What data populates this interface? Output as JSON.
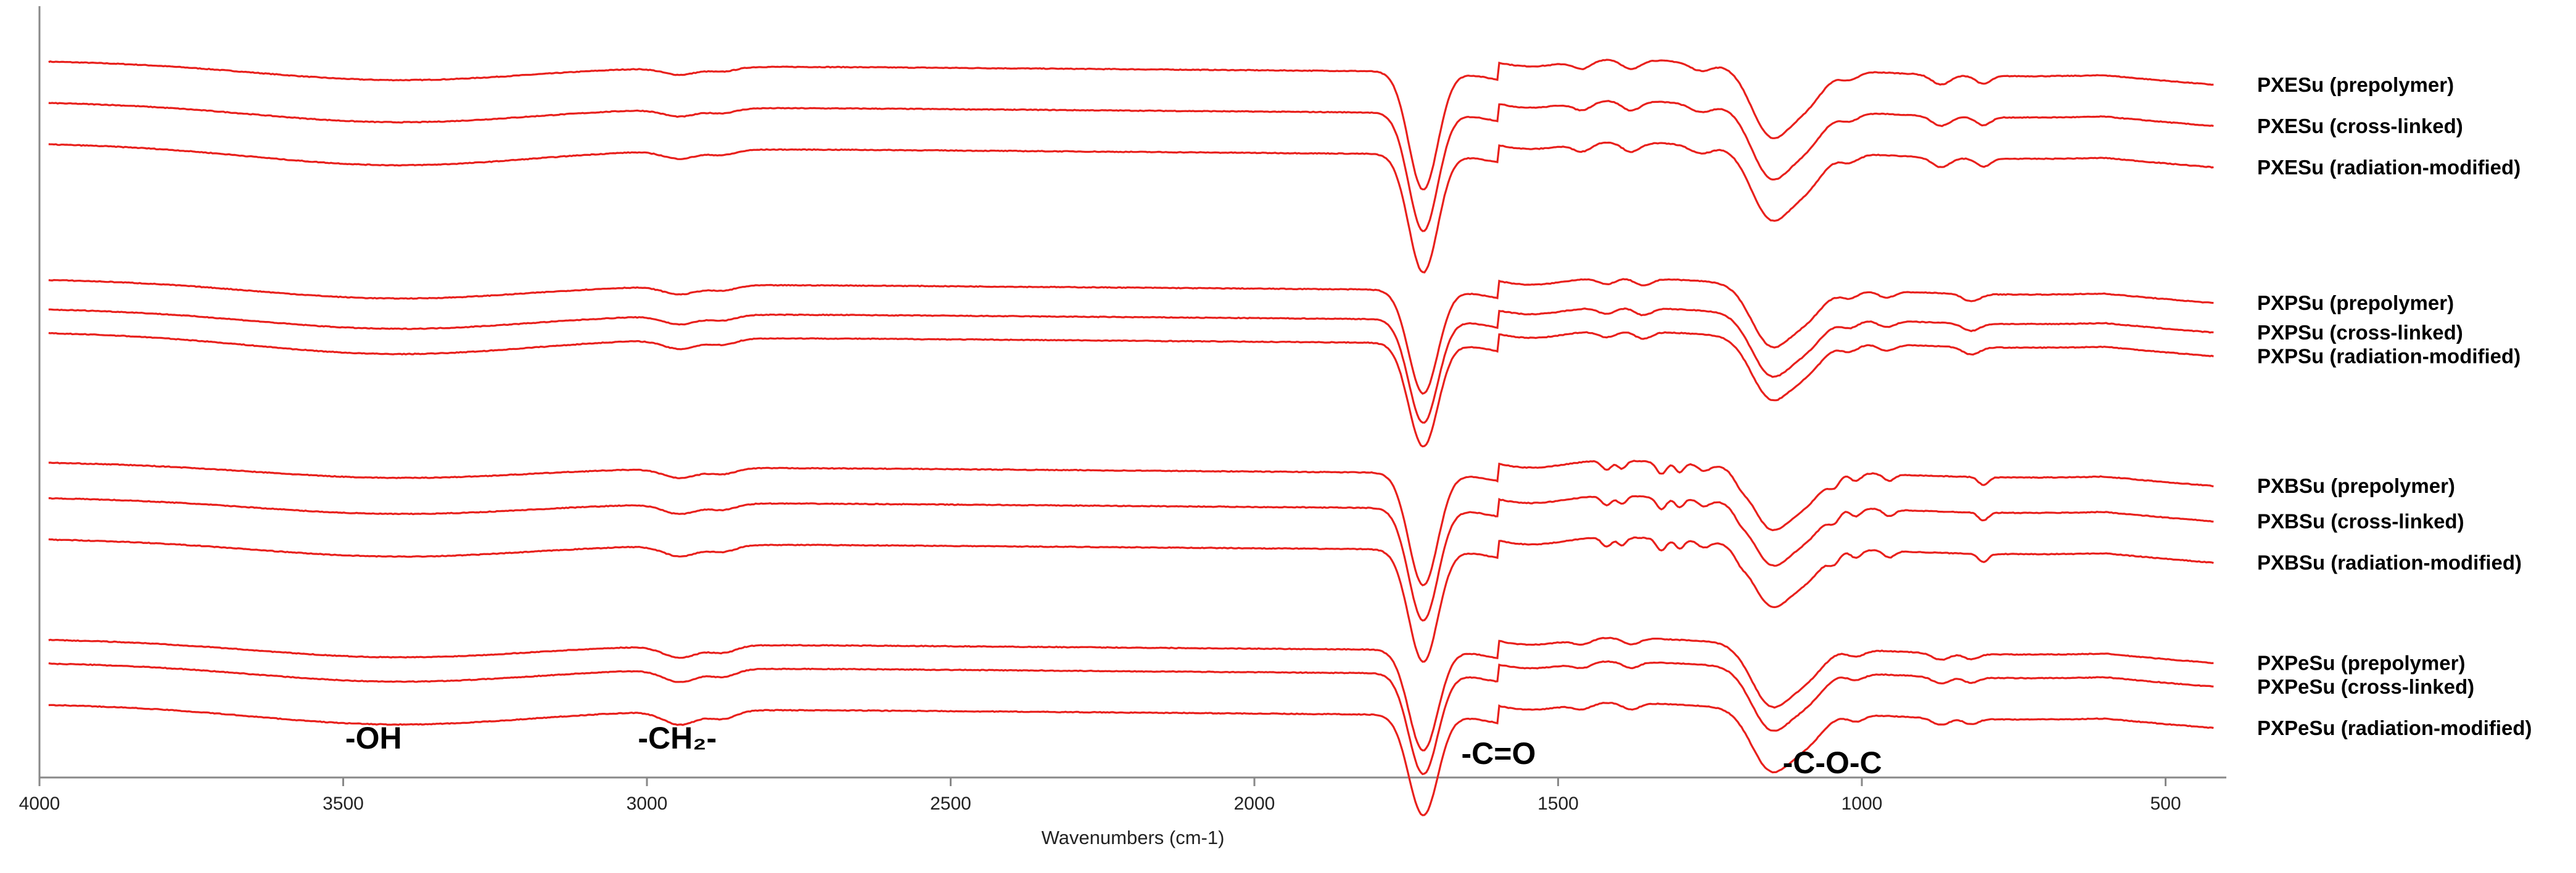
{
  "chart_data": {
    "type": "line",
    "title": "",
    "xlabel": "Wavenumbers (cm-1)",
    "ylabel": "",
    "xlim": [
      4000,
      400
    ],
    "x_reversed": true,
    "grid": false,
    "ticks": [
      4000,
      3500,
      3000,
      2500,
      2000,
      1500,
      1000,
      500
    ],
    "tick_labels": [
      "4000",
      "3500",
      "3000",
      "2500",
      "2000",
      "1500",
      "1000",
      "500"
    ],
    "line_color": "#e8201c",
    "axis_color": "#888888",
    "groups": [
      {
        "name": "PXESu",
        "series": [
          {
            "name": "PXESu (prepolymer)",
            "offset": 12.0,
            "material": "PXESu",
            "mod": "prepolymer"
          },
          {
            "name": "PXESu (cross-linked)",
            "offset": 11.3,
            "material": "PXESu",
            "mod": "cross-linked"
          },
          {
            "name": "PXESu (radiation-modified)",
            "offset": 10.6,
            "material": "PXESu",
            "mod": "radiation-modified"
          }
        ]
      },
      {
        "name": "PXPSu",
        "series": [
          {
            "name": "PXPSu (prepolymer)",
            "offset": 8.3,
            "material": "PXPSu",
            "mod": "prepolymer"
          },
          {
            "name": "PXPSu (cross-linked)",
            "offset": 7.8,
            "material": "PXPSu",
            "mod": "cross-linked"
          },
          {
            "name": "PXPSu (radiation-modified)",
            "offset": 7.4,
            "material": "PXPSu",
            "mod": "radiation-modified"
          }
        ]
      },
      {
        "name": "PXBSu",
        "series": [
          {
            "name": "PXBSu (prepolymer)",
            "offset": 5.2,
            "material": "PXBSu",
            "mod": "prepolymer"
          },
          {
            "name": "PXBSu (cross-linked)",
            "offset": 4.6,
            "material": "PXBSu",
            "mod": "cross-linked"
          },
          {
            "name": "PXBSu (radiation-modified)",
            "offset": 3.9,
            "material": "PXBSu",
            "mod": "radiation-modified"
          }
        ]
      },
      {
        "name": "PXPeSu",
        "series": [
          {
            "name": "PXPeSu (prepolymer)",
            "offset": 2.2,
            "material": "PXPeSu",
            "mod": "prepolymer"
          },
          {
            "name": "PXPeSu (cross-linked)",
            "offset": 1.8,
            "material": "PXPeSu",
            "mod": "cross-linked"
          },
          {
            "name": "PXPeSu (radiation-modified)",
            "offset": 1.1,
            "material": "PXPeSu",
            "mod": "radiation-modified"
          }
        ]
      }
    ],
    "annotations": [
      {
        "text": "-OH",
        "x": 3450
      },
      {
        "text": "-CH₂-",
        "x": 2950
      },
      {
        "text": "-C=O",
        "x": 1730
      },
      {
        "text": "-C-O-C",
        "x": 1140
      }
    ]
  }
}
